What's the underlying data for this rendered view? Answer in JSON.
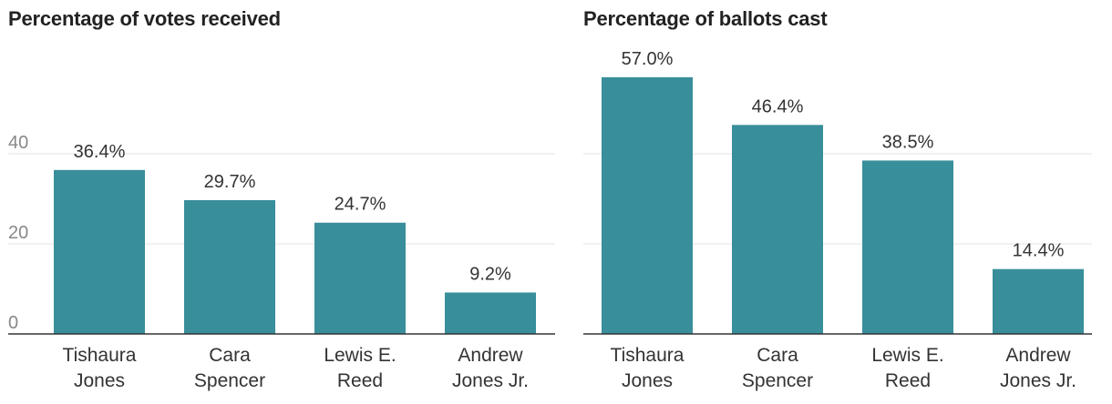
{
  "chart_data": [
    {
      "type": "bar",
      "title": "Percentage of votes received",
      "categories": [
        [
          "Tishaura",
          "Jones"
        ],
        [
          "Cara",
          "Spencer"
        ],
        [
          "Lewis E.",
          "Reed"
        ],
        [
          "Andrew",
          "Jones Jr."
        ]
      ],
      "values": [
        36.4,
        29.7,
        24.7,
        9.2
      ],
      "value_labels": [
        "36.4%",
        "29.7%",
        "24.7%",
        "9.2%"
      ],
      "ylim": [
        0,
        40
      ],
      "yticks": [
        0,
        20,
        40
      ],
      "ytick_labels": [
        "0",
        "20",
        "40"
      ],
      "grid": true,
      "bar_color": "#388e9a"
    },
    {
      "type": "bar",
      "title": "Percentage of ballots cast",
      "categories": [
        [
          "Tishaura",
          "Jones"
        ],
        [
          "Cara",
          "Spencer"
        ],
        [
          "Lewis E.",
          "Reed"
        ],
        [
          "Andrew",
          "Jones Jr."
        ]
      ],
      "values": [
        57.0,
        46.4,
        38.5,
        14.4
      ],
      "value_labels": [
        "57.0%",
        "46.4%",
        "38.5%",
        "14.4%"
      ],
      "ylim": [
        0,
        40
      ],
      "yticks": [
        0,
        20,
        40
      ],
      "ytick_labels": [
        "",
        "",
        ""
      ],
      "grid": true,
      "bar_color": "#388e9a"
    }
  ]
}
